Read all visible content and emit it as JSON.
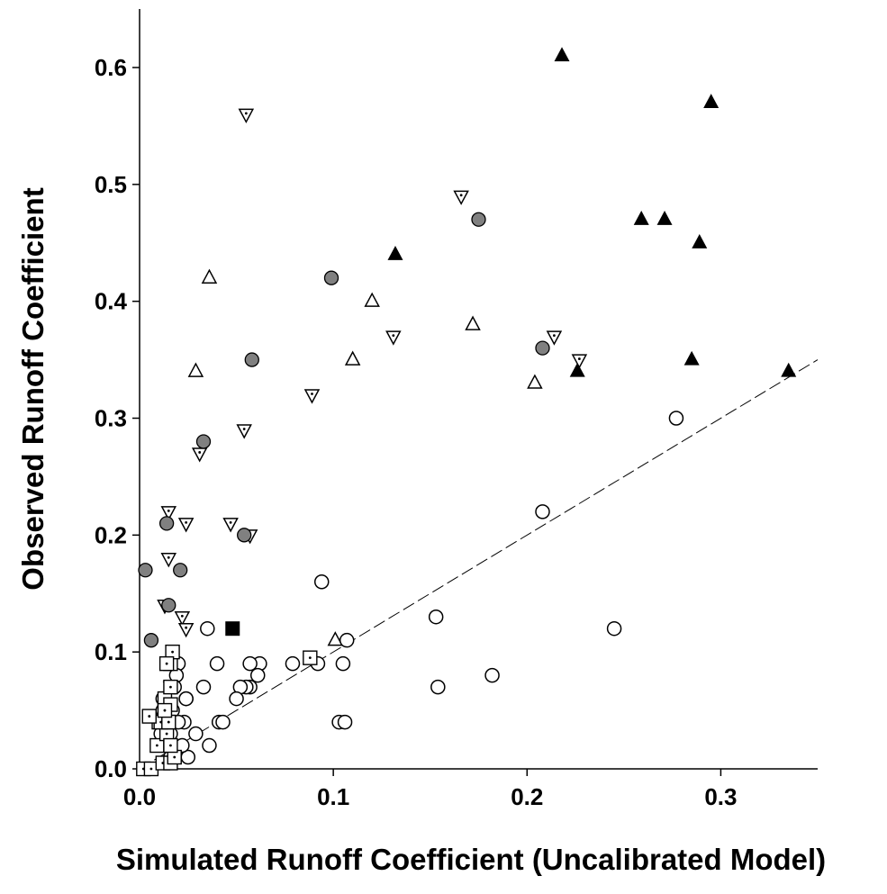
{
  "chart_data": {
    "type": "scatter",
    "title": "",
    "xlabel": "Simulated Runoff Coefficient (Uncalibrated Model)",
    "ylabel": "Observed Runoff Coefficient",
    "xlim": [
      0,
      0.35
    ],
    "ylim": [
      0,
      0.65
    ],
    "xticks": [
      0.0,
      0.1,
      0.2,
      0.3
    ],
    "xtick_labels": [
      "0.0",
      "0.1",
      "0.2",
      "0.3"
    ],
    "yticks": [
      0.0,
      0.1,
      0.2,
      0.3,
      0.4,
      0.5,
      0.6
    ],
    "ytick_labels": [
      "0.0",
      "0.1",
      "0.2",
      "0.3",
      "0.4",
      "0.5",
      "0.6"
    ],
    "grid": false,
    "legend": "none",
    "reference_line": {
      "style": "dashed",
      "slope": 1,
      "intercept": 0,
      "x_range": [
        0.0,
        0.35
      ]
    },
    "series": [
      {
        "marker": "filled-triangle-up",
        "color": "#000000",
        "x": [
          0.218,
          0.295,
          0.259,
          0.271,
          0.289,
          0.132,
          0.226,
          0.285,
          0.335
        ],
        "y": [
          0.61,
          0.57,
          0.47,
          0.47,
          0.45,
          0.44,
          0.34,
          0.35,
          0.34
        ]
      },
      {
        "marker": "open-triangle-down-dot",
        "color": "#000000",
        "x": [
          0.055,
          0.166,
          0.131,
          0.214,
          0.227,
          0.089,
          0.054,
          0.031,
          0.015,
          0.024,
          0.047,
          0.057,
          0.015,
          0.022,
          0.013,
          0.024,
          0.016
        ],
        "y": [
          0.56,
          0.49,
          0.37,
          0.37,
          0.35,
          0.32,
          0.29,
          0.27,
          0.22,
          0.21,
          0.21,
          0.2,
          0.18,
          0.13,
          0.14,
          0.12,
          0.07
        ]
      },
      {
        "marker": "open-triangle-up",
        "color": "#000000",
        "x": [
          0.036,
          0.12,
          0.11,
          0.172,
          0.204,
          0.029,
          0.101
        ],
        "y": [
          0.42,
          0.4,
          0.35,
          0.38,
          0.33,
          0.34,
          0.11
        ]
      },
      {
        "marker": "filled-circle-gray",
        "color": "#808080",
        "x": [
          0.175,
          0.099,
          0.058,
          0.208,
          0.033,
          0.014,
          0.003,
          0.021,
          0.054,
          0.015,
          0.006
        ],
        "y": [
          0.47,
          0.42,
          0.35,
          0.36,
          0.28,
          0.21,
          0.17,
          0.17,
          0.2,
          0.14,
          0.11
        ]
      },
      {
        "marker": "filled-square",
        "color": "#000000",
        "x": [
          0.048
        ],
        "y": [
          0.12
        ]
      },
      {
        "marker": "open-circle",
        "color": "#000000",
        "x": [
          0.277,
          0.208,
          0.245,
          0.094,
          0.153,
          0.154,
          0.182,
          0.103,
          0.106,
          0.105,
          0.107,
          0.092,
          0.079,
          0.062,
          0.061,
          0.057,
          0.055,
          0.052,
          0.05,
          0.057,
          0.04,
          0.035,
          0.033,
          0.041,
          0.043,
          0.036,
          0.029,
          0.025,
          0.024,
          0.023,
          0.022,
          0.02,
          0.019,
          0.018,
          0.017,
          0.016,
          0.015,
          0.014,
          0.012,
          0.011,
          0.02,
          0.016,
          0.024,
          0.012
        ],
        "y": [
          0.3,
          0.22,
          0.12,
          0.16,
          0.13,
          0.07,
          0.08,
          0.04,
          0.04,
          0.09,
          0.11,
          0.09,
          0.09,
          0.09,
          0.08,
          0.07,
          0.07,
          0.07,
          0.06,
          0.09,
          0.09,
          0.12,
          0.07,
          0.04,
          0.04,
          0.02,
          0.03,
          0.01,
          0.06,
          0.04,
          0.02,
          0.09,
          0.08,
          0.07,
          0.05,
          0.03,
          0.02,
          0.04,
          0.06,
          0.03,
          0.04,
          0.01,
          0.06,
          0.05
        ]
      },
      {
        "marker": "open-square-dot",
        "color": "#000000",
        "x": [
          0.002,
          0.006,
          0.009,
          0.01,
          0.012,
          0.016,
          0.018,
          0.014,
          0.015,
          0.013,
          0.016,
          0.016,
          0.017,
          0.014,
          0.011,
          0.016,
          0.015,
          0.016,
          0.013,
          0.088,
          0.005
        ],
        "y": [
          0.0,
          0.0,
          0.02,
          0.04,
          0.005,
          0.005,
          0.01,
          0.03,
          0.04,
          0.06,
          0.07,
          0.09,
          0.1,
          0.09,
          0.04,
          0.02,
          0.04,
          0.055,
          0.05,
          0.095,
          0.045
        ]
      }
    ]
  }
}
